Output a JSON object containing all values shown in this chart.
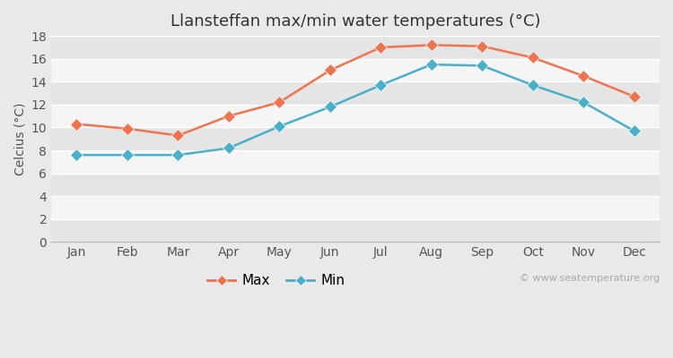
{
  "months": [
    "Jan",
    "Feb",
    "Mar",
    "Apr",
    "May",
    "Jun",
    "Jul",
    "Aug",
    "Sep",
    "Oct",
    "Nov",
    "Dec"
  ],
  "max_temps": [
    10.3,
    9.9,
    9.3,
    11.0,
    12.2,
    15.0,
    17.0,
    17.2,
    17.1,
    16.1,
    14.5,
    12.7
  ],
  "min_temps": [
    7.6,
    7.6,
    7.6,
    8.2,
    10.1,
    11.8,
    13.7,
    15.5,
    15.4,
    13.7,
    12.2,
    9.7
  ],
  "max_color": "#f07350",
  "min_color": "#4aafc8",
  "title": "Llansteffan max/min water temperatures (°C)",
  "ylabel": "Celcius (°C)",
  "ylim": [
    0,
    18
  ],
  "yticks": [
    0,
    2,
    4,
    6,
    8,
    10,
    12,
    14,
    16,
    18
  ],
  "fig_bg_color": "#e9e9e9",
  "plot_bg_color": "#f5f5f5",
  "band_color_dark": "#e5e5e5",
  "band_color_light": "#f5f5f5",
  "watermark": "© www.seatemperature.org",
  "legend_max": "Max",
  "legend_min": "Min",
  "title_fontsize": 13,
  "axis_fontsize": 10,
  "watermark_fontsize": 8
}
